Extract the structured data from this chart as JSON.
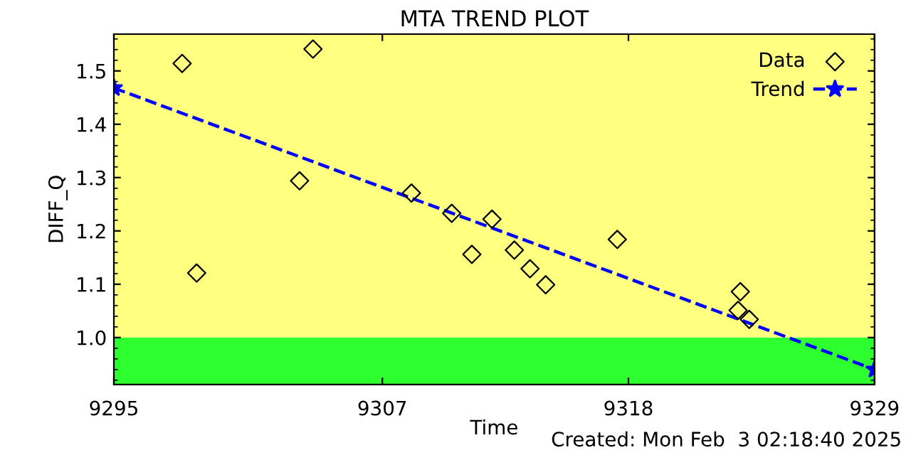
{
  "chart_data": {
    "type": "scatter",
    "title": "MTA TREND PLOT",
    "xlabel": "Time",
    "ylabel": "DIFF_Q",
    "series": [
      {
        "name": "Data",
        "type": "scatter",
        "color": "#000000",
        "marker": "diamond",
        "x": [
          9298.05,
          9298.7,
          9303.3,
          9303.9,
          9308.3,
          9310.1,
          9311.0,
          9311.9,
          9312.9,
          9313.6,
          9314.3,
          9317.5,
          9323.0,
          9322.9,
          9323.4
        ],
        "values": [
          1.514,
          1.121,
          1.294,
          1.541,
          1.271,
          1.233,
          1.156,
          1.222,
          1.164,
          1.129,
          1.099,
          1.184,
          1.086,
          1.051,
          1.034
        ]
      },
      {
        "name": "Trend",
        "type": "line",
        "color": "#0000ff",
        "marker": "star",
        "line_style": "dashed",
        "x": [
          9295,
          9329
        ],
        "values": [
          1.468,
          0.94
        ]
      }
    ],
    "xlim": [
      9295,
      9329
    ],
    "xticks": [
      9295,
      9307,
      9318,
      9329
    ],
    "ylim": [
      0.912,
      1.569
    ],
    "yticks": [
      {
        "value": 1.0,
        "label": "1.0"
      },
      1.1,
      1.2,
      1.3,
      1.4,
      1.5
    ],
    "bands": [
      {
        "axis": "y",
        "from": 0.912,
        "to": 1.0,
        "color": "#2eff2e"
      },
      {
        "axis": "y",
        "from": 1.0,
        "to": 1.569,
        "color": "#ffff80"
      }
    ],
    "legend": "top right",
    "grid": false,
    "annotations": [
      "Created: Mon Feb  3 02:18:40 2025"
    ]
  }
}
